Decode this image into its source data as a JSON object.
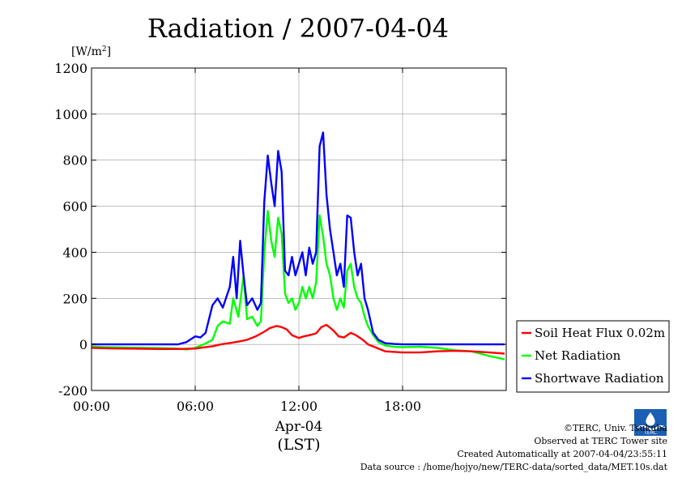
{
  "chart_data": {
    "type": "line",
    "title": "Radiation / 2007-04-04",
    "ylabel": "[W/m",
    "ylabel_sup": "2",
    "ylabel_close": "]",
    "xlabel": "Apr-04",
    "xlabel2": "(LST)",
    "xlim": [
      0,
      24
    ],
    "ylim": [
      -200,
      1200
    ],
    "yticks": [
      "-200",
      "0",
      "200",
      "400",
      "600",
      "800",
      "1000",
      "1200"
    ],
    "ytick_values": [
      -200,
      0,
      200,
      400,
      600,
      800,
      1000,
      1200
    ],
    "xticks": [
      "00:00",
      "06:00",
      "12:00",
      "18:00"
    ],
    "xtick_values": [
      0,
      6,
      12,
      18
    ],
    "grid": true,
    "legend_position": "right",
    "series": [
      {
        "name": "Soil Heat Flux 0.02m",
        "color": "#ff0000",
        "x": [
          0,
          1,
          2,
          3,
          4,
          5,
          6,
          6.5,
          7,
          7.5,
          8,
          8.5,
          9,
          9.5,
          10,
          10.3,
          10.7,
          11,
          11.3,
          11.6,
          12,
          12.3,
          12.6,
          13,
          13.3,
          13.6,
          14,
          14.3,
          14.6,
          15,
          15.3,
          15.7,
          16,
          16.5,
          17,
          18,
          19,
          20,
          21,
          22,
          23,
          23.9
        ],
        "y": [
          -15,
          -17,
          -18,
          -19,
          -20,
          -20,
          -18,
          -13,
          -8,
          0,
          6,
          12,
          20,
          35,
          55,
          70,
          80,
          75,
          65,
          40,
          28,
          35,
          40,
          48,
          75,
          85,
          60,
          35,
          30,
          50,
          40,
          20,
          0,
          -15,
          -30,
          -35,
          -35,
          -30,
          -28,
          -30,
          -35,
          -40
        ]
      },
      {
        "name": "Net Radiation",
        "color": "#00ff00",
        "x": [
          0,
          1,
          2,
          3,
          4,
          5,
          5.5,
          6,
          6.5,
          7,
          7.3,
          7.6,
          8,
          8.2,
          8.5,
          8.8,
          9,
          9.3,
          9.6,
          9.8,
          10,
          10.2,
          10.4,
          10.6,
          10.8,
          11,
          11.2,
          11.4,
          11.6,
          11.8,
          12,
          12.2,
          12.4,
          12.6,
          12.8,
          13,
          13.2,
          13.4,
          13.6,
          13.8,
          14,
          14.2,
          14.4,
          14.6,
          14.8,
          15,
          15.2,
          15.4,
          15.6,
          15.8,
          16,
          16.3,
          16.6,
          17,
          17.5,
          18,
          19,
          20,
          21,
          22,
          23,
          23.9
        ],
        "y": [
          -10,
          -12,
          -14,
          -15,
          -16,
          -18,
          -22,
          -15,
          0,
          20,
          80,
          100,
          90,
          200,
          120,
          300,
          110,
          120,
          80,
          100,
          400,
          580,
          450,
          380,
          550,
          480,
          220,
          180,
          200,
          150,
          180,
          250,
          200,
          250,
          200,
          270,
          560,
          470,
          350,
          300,
          200,
          150,
          200,
          160,
          320,
          350,
          250,
          200,
          180,
          120,
          80,
          40,
          10,
          -5,
          -10,
          -12,
          -10,
          -15,
          -25,
          -30,
          -50,
          -65
        ]
      },
      {
        "name": "Shortwave Radiation",
        "color": "#0000ff",
        "x": [
          0,
          1,
          2,
          3,
          4,
          5,
          5.5,
          6,
          6.3,
          6.6,
          7,
          7.3,
          7.6,
          8,
          8.2,
          8.4,
          8.6,
          8.8,
          9,
          9.3,
          9.6,
          9.8,
          10,
          10.2,
          10.4,
          10.6,
          10.8,
          11,
          11.2,
          11.4,
          11.6,
          11.8,
          12,
          12.2,
          12.4,
          12.6,
          12.8,
          13,
          13.2,
          13.4,
          13.6,
          13.8,
          14,
          14.2,
          14.4,
          14.6,
          14.8,
          15,
          15.2,
          15.4,
          15.6,
          15.8,
          16,
          16.3,
          16.6,
          17,
          17.5,
          18,
          19,
          20,
          21,
          22,
          23,
          23.9
        ],
        "y": [
          0,
          0,
          0,
          0,
          0,
          0,
          10,
          35,
          30,
          50,
          170,
          200,
          160,
          250,
          380,
          200,
          450,
          300,
          170,
          200,
          150,
          180,
          620,
          820,
          700,
          600,
          840,
          750,
          320,
          300,
          380,
          300,
          350,
          400,
          300,
          420,
          350,
          400,
          860,
          920,
          650,
          500,
          400,
          300,
          350,
          250,
          560,
          550,
          400,
          300,
          350,
          200,
          150,
          50,
          20,
          5,
          2,
          0,
          0,
          0,
          0,
          0,
          0,
          0
        ]
      }
    ]
  },
  "credits": {
    "copyright": "©TERC, Univ. Tsukuba",
    "site": "Observed at TERC Tower site",
    "created": "Created Automatically at 2007-04-04/23:55:11",
    "source": "Data source : /home/hojyo/new/TERC-data/sorted_data/MET.10s.dat",
    "logo_text": "TERC"
  }
}
